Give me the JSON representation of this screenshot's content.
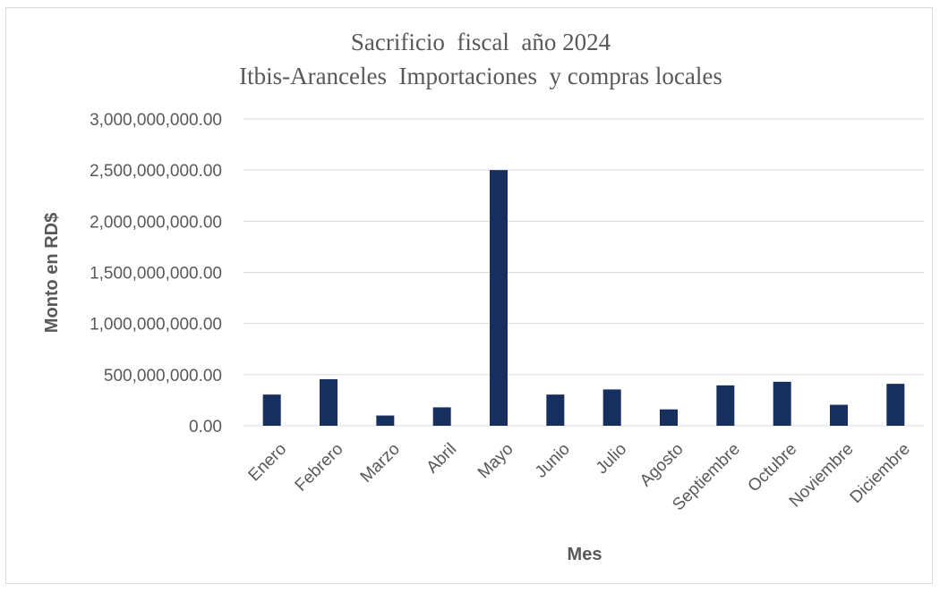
{
  "chart_data": {
    "type": "bar",
    "title": "Sacrificio  fiscal  año 2024",
    "subtitle": "Itbis-Aranceles  Importaciones  y compras locales",
    "xlabel": "Mes",
    "ylabel": "Monto en RD$",
    "categories": [
      "Enero",
      "Febrero",
      "Marzo",
      "Abril",
      "Mayo",
      "Junio",
      "Julio",
      "Agosto",
      "Septiembre",
      "Octubre",
      "Noviembre",
      "Diciembre"
    ],
    "values": [
      305000000,
      455000000,
      100000000,
      180000000,
      2500000000,
      305000000,
      355000000,
      160000000,
      395000000,
      430000000,
      205000000,
      410000000
    ],
    "ylim": [
      0,
      3000000000
    ],
    "yticks": [
      {
        "value": 0,
        "label": "0.00"
      },
      {
        "value": 500000000,
        "label": "500,000,000.00"
      },
      {
        "value": 1000000000,
        "label": "1,000,000,000.00"
      },
      {
        "value": 1500000000,
        "label": "1,500,000,000.00"
      },
      {
        "value": 2000000000,
        "label": "2,000,000,000.00"
      },
      {
        "value": 2500000000,
        "label": "2,500,000,000.00"
      },
      {
        "value": 3000000000,
        "label": "3,000,000,000.00"
      }
    ],
    "grid": true,
    "legend": "none",
    "bar_color": "#172f5e",
    "grid_color": "#d9d9d9",
    "text_color": "#595959"
  }
}
